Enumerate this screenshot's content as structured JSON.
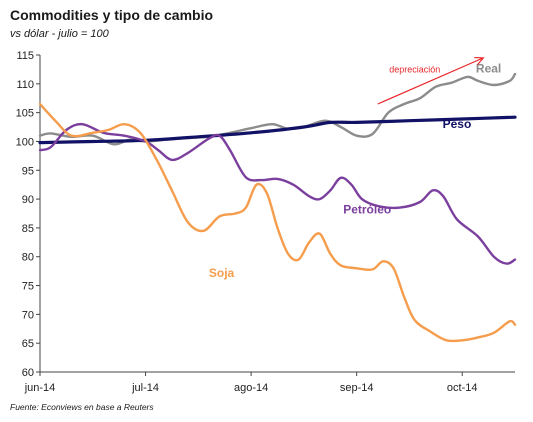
{
  "title": "Commodities y tipo de cambio",
  "subtitle": "vs dólar - julio = 100",
  "source": "Fuente: Econviews en base a Reuters",
  "chart_data": {
    "type": "line",
    "x_range": [
      0,
      4.5
    ],
    "x_ticks": [
      {
        "x": 0,
        "label": "jun-14"
      },
      {
        "x": 1,
        "label": "jul-14"
      },
      {
        "x": 2,
        "label": "ago-14"
      },
      {
        "x": 3,
        "label": "sep-14"
      },
      {
        "x": 4,
        "label": "oct-14"
      }
    ],
    "ylim": [
      60,
      115
    ],
    "y_ticks": [
      60,
      65,
      70,
      75,
      80,
      85,
      90,
      95,
      100,
      105,
      110,
      115
    ],
    "grid": false,
    "annotation": {
      "text": "depreciación",
      "color": "#e8262a",
      "arrow_from": [
        3.2,
        106.5
      ],
      "arrow_to": [
        4.2,
        114.5
      ],
      "text_at": [
        3.55,
        112
      ]
    },
    "series": [
      {
        "name": "Real",
        "color": "#8c8c8c",
        "label_at": [
          4.25,
          112
        ],
        "points": [
          [
            0,
            101
          ],
          [
            0.1,
            101.4
          ],
          [
            0.3,
            100.8
          ],
          [
            0.5,
            101
          ],
          [
            0.7,
            99.5
          ],
          [
            0.85,
            100.3
          ],
          [
            1,
            100
          ],
          [
            1.2,
            100.3
          ],
          [
            1.4,
            100.6
          ],
          [
            1.6,
            100.8
          ],
          [
            1.8,
            101.5
          ],
          [
            2,
            102.3
          ],
          [
            2.2,
            103
          ],
          [
            2.35,
            102.2
          ],
          [
            2.5,
            102.5
          ],
          [
            2.7,
            103.6
          ],
          [
            2.85,
            102.5
          ],
          [
            3,
            101
          ],
          [
            3.15,
            101.3
          ],
          [
            3.3,
            105
          ],
          [
            3.45,
            106.5
          ],
          [
            3.6,
            107.5
          ],
          [
            3.75,
            109.5
          ],
          [
            3.9,
            110.2
          ],
          [
            4.05,
            111.2
          ],
          [
            4.15,
            110.5
          ],
          [
            4.3,
            109.8
          ],
          [
            4.45,
            110.5
          ],
          [
            4.5,
            111.7
          ]
        ]
      },
      {
        "name": "Peso",
        "color": "#111166",
        "label_at": [
          3.95,
          102.3
        ],
        "points": [
          [
            0,
            99.8
          ],
          [
            0.5,
            100
          ],
          [
            1,
            100.2
          ],
          [
            1.5,
            100.8
          ],
          [
            2,
            101.5
          ],
          [
            2.5,
            102.5
          ],
          [
            2.75,
            103.3
          ],
          [
            3,
            103.3
          ],
          [
            3.5,
            103.6
          ],
          [
            4,
            103.9
          ],
          [
            4.5,
            104.2
          ]
        ]
      },
      {
        "name": "Petróleo",
        "color": "#7b3f9e",
        "label_at": [
          3.1,
          87.5
        ],
        "points": [
          [
            0,
            98.5
          ],
          [
            0.1,
            99
          ],
          [
            0.25,
            102
          ],
          [
            0.4,
            103
          ],
          [
            0.6,
            101.5
          ],
          [
            0.8,
            101
          ],
          [
            1,
            100
          ],
          [
            1.12,
            98.5
          ],
          [
            1.25,
            96.8
          ],
          [
            1.4,
            98
          ],
          [
            1.6,
            100.5
          ],
          [
            1.7,
            101
          ],
          [
            1.8,
            98.5
          ],
          [
            1.95,
            93.8
          ],
          [
            2.1,
            93.3
          ],
          [
            2.25,
            93.5
          ],
          [
            2.4,
            92.5
          ],
          [
            2.55,
            90.5
          ],
          [
            2.65,
            90
          ],
          [
            2.75,
            91.5
          ],
          [
            2.85,
            93.7
          ],
          [
            2.95,
            92.5
          ],
          [
            3.05,
            90
          ],
          [
            3.2,
            88.8
          ],
          [
            3.4,
            88.5
          ],
          [
            3.6,
            89.5
          ],
          [
            3.72,
            91.5
          ],
          [
            3.82,
            90.5
          ],
          [
            3.95,
            86.5
          ],
          [
            4.15,
            83.5
          ],
          [
            4.3,
            80
          ],
          [
            4.42,
            78.8
          ],
          [
            4.5,
            79.5
          ]
        ]
      },
      {
        "name": "Soja",
        "color": "#f59d4c",
        "label_at": [
          1.72,
          76.5
        ],
        "points": [
          [
            0,
            106.5
          ],
          [
            0.15,
            103.5
          ],
          [
            0.3,
            101
          ],
          [
            0.5,
            101.5
          ],
          [
            0.65,
            102
          ],
          [
            0.8,
            103
          ],
          [
            0.95,
            101.5
          ],
          [
            1.1,
            97
          ],
          [
            1.25,
            91.5
          ],
          [
            1.4,
            86
          ],
          [
            1.55,
            84.5
          ],
          [
            1.7,
            87
          ],
          [
            1.85,
            87.5
          ],
          [
            1.95,
            88.5
          ],
          [
            2.05,
            92.5
          ],
          [
            2.15,
            91
          ],
          [
            2.25,
            85
          ],
          [
            2.35,
            80.5
          ],
          [
            2.45,
            79.5
          ],
          [
            2.55,
            82.5
          ],
          [
            2.65,
            84
          ],
          [
            2.75,
            80.5
          ],
          [
            2.85,
            78.5
          ],
          [
            3,
            78
          ],
          [
            3.15,
            77.8
          ],
          [
            3.25,
            79.2
          ],
          [
            3.35,
            78
          ],
          [
            3.45,
            73
          ],
          [
            3.55,
            69
          ],
          [
            3.7,
            67
          ],
          [
            3.85,
            65.5
          ],
          [
            4,
            65.5
          ],
          [
            4.15,
            66
          ],
          [
            4.3,
            66.8
          ],
          [
            4.45,
            68.8
          ],
          [
            4.5,
            68.2
          ]
        ]
      }
    ]
  }
}
